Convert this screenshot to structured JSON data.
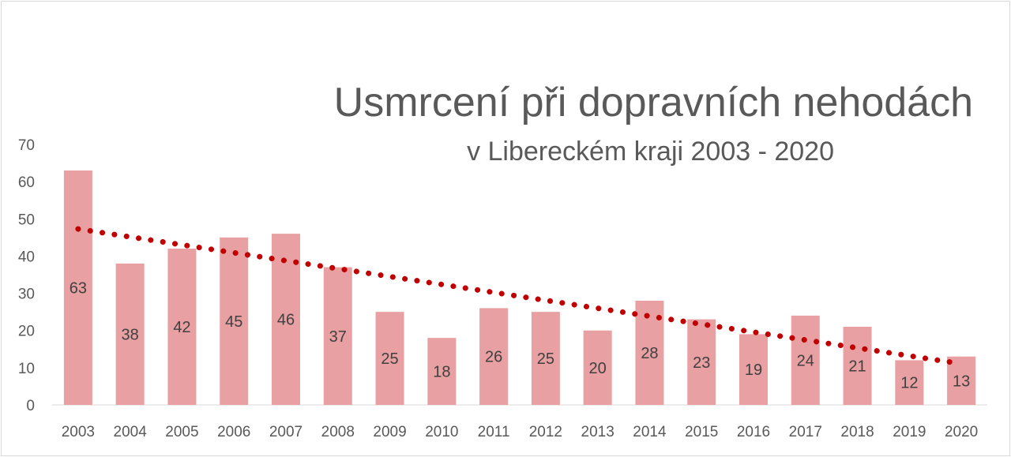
{
  "chart_data": {
    "type": "bar",
    "title": "Usmrcení při dopravních nehodách",
    "subtitle": "v Libereckém kraji 2003 - 2020",
    "categories": [
      "2003",
      "2004",
      "2005",
      "2006",
      "2007",
      "2008",
      "2009",
      "2010",
      "2011",
      "2012",
      "2013",
      "2014",
      "2015",
      "2016",
      "2017",
      "2018",
      "2019",
      "2020"
    ],
    "values": [
      63,
      38,
      42,
      45,
      46,
      37,
      25,
      18,
      26,
      25,
      20,
      28,
      23,
      19,
      24,
      21,
      12,
      13
    ],
    "ylim": [
      0,
      70
    ],
    "yticks": [
      0,
      10,
      20,
      30,
      40,
      50,
      60,
      70
    ],
    "grid": false,
    "legend": "none",
    "data_labels": true,
    "trendline": {
      "type": "linear",
      "style": "dotted",
      "color": "#c00000"
    },
    "colors": {
      "bar": "#e8a0a2",
      "trend": "#c00000",
      "text": "#595959"
    }
  }
}
